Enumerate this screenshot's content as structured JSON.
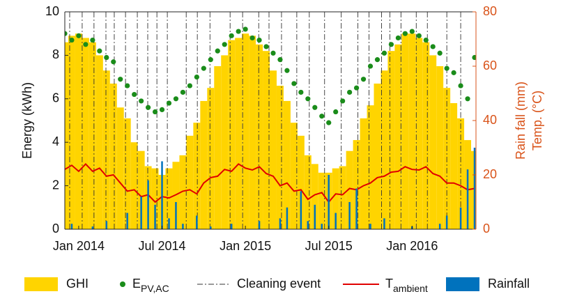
{
  "chart_data": {
    "type": "combo",
    "ylabel": "Energy (kWh)",
    "y2label": [
      "Rain fall (mm)",
      "Temp. (°C)"
    ],
    "y2color": "#d95319",
    "xlim": [
      -1,
      28.6
    ],
    "xticks": [
      {
        "value": 0,
        "label": "Jan 2014"
      },
      {
        "value": 6,
        "label": "Jul 2014"
      },
      {
        "value": 12,
        "label": "Jan 2015"
      },
      {
        "value": 18,
        "label": "Jul 2015"
      },
      {
        "value": 24,
        "label": "Jan 2016"
      }
    ],
    "ylim": [
      0,
      10
    ],
    "yticks": [
      0,
      2,
      4,
      6,
      8,
      10
    ],
    "y2lim": [
      0,
      80
    ],
    "y2ticks": [
      0,
      20,
      40,
      60,
      80
    ],
    "x": [
      -1,
      -0.5,
      0,
      0.5,
      1,
      1.5,
      2,
      2.5,
      3,
      3.5,
      4,
      4.5,
      5,
      5.5,
      6,
      6.5,
      7,
      7.5,
      8,
      8.5,
      9,
      9.5,
      10,
      10.5,
      11,
      11.5,
      12,
      12.5,
      13,
      13.5,
      14,
      14.5,
      15,
      15.5,
      16,
      16.5,
      17,
      17.5,
      18,
      18.5,
      19,
      19.5,
      20,
      20.5,
      21,
      21.5,
      22,
      22.5,
      23,
      23.5,
      24,
      24.5,
      25,
      25.5,
      26,
      26.5,
      27,
      27.5,
      28,
      28.5
    ],
    "series": [
      {
        "name": "GHI",
        "type": "bar",
        "color": "#ffd400",
        "values": [
          8.6,
          8.9,
          9.0,
          8.8,
          8.6,
          8.0,
          7.3,
          6.7,
          5.6,
          5.1,
          4.0,
          3.6,
          2.9,
          2.8,
          2.5,
          2.8,
          3.1,
          3.4,
          4.3,
          4.9,
          5.9,
          6.5,
          7.5,
          8.0,
          8.7,
          8.8,
          9.0,
          8.9,
          8.5,
          8.2,
          7.3,
          6.6,
          5.9,
          4.9,
          4.3,
          3.4,
          3.0,
          2.6,
          2.6,
          2.8,
          2.9,
          3.6,
          4.1,
          5.1,
          5.7,
          6.7,
          7.3,
          8.2,
          8.5,
          9.0,
          9.0,
          8.8,
          8.6,
          8.0,
          7.5,
          6.5,
          5.8,
          5.1,
          4.1,
          3.6
        ]
      },
      {
        "name": "E",
        "subscript": "PV,AC",
        "type": "scatter",
        "color": "#1a8c1a",
        "values": [
          9.0,
          8.7,
          8.9,
          8.5,
          8.7,
          8.2,
          7.9,
          7.7,
          6.9,
          6.6,
          6.2,
          5.9,
          5.6,
          5.4,
          5.5,
          5.8,
          6.0,
          6.3,
          6.6,
          7.0,
          7.4,
          7.8,
          8.2,
          8.5,
          8.9,
          9.1,
          9.2,
          8.8,
          8.7,
          8.4,
          8.1,
          7.8,
          7.3,
          6.7,
          6.3,
          6.0,
          5.6,
          5.2,
          4.9,
          5.4,
          5.9,
          6.3,
          6.5,
          6.9,
          7.5,
          7.8,
          8.1,
          8.5,
          8.8,
          9.0,
          9.1,
          8.9,
          8.7,
          8.4,
          8.1,
          7.4,
          7.2,
          6.6,
          6.0,
          7.9
        ]
      },
      {
        "name": "Cleaning event",
        "type": "vline",
        "color": "#333333",
        "x": [
          -0.65,
          0.25,
          1.1,
          1.96,
          2.56,
          3.37,
          4.22,
          4.97,
          5.63,
          6.38,
          7.74,
          8.54,
          9.45,
          10.9,
          11.8,
          12.96,
          13.7,
          14.6,
          15.7,
          16.6,
          17.7,
          18.9,
          20.1,
          20.9,
          21.8,
          22.4,
          23.2,
          24.3,
          25.1,
          26.5,
          27.5
        ]
      },
      {
        "name": "T",
        "subscript": "ambient",
        "type": "line",
        "color": "#e00000",
        "axis": "y2",
        "values": [
          22,
          23.5,
          21.3,
          24,
          21.3,
          22.5,
          19.5,
          20,
          17,
          14,
          14.5,
          12,
          12.7,
          10,
          12,
          11.5,
          12.7,
          14,
          14.5,
          13,
          17,
          19,
          19.5,
          22,
          21.3,
          24,
          22.5,
          21.8,
          23,
          20.5,
          19.5,
          16,
          17,
          14,
          14.5,
          11,
          12.7,
          13.5,
          10,
          13,
          12.7,
          15,
          14.5,
          16,
          17,
          19,
          19.5,
          21,
          21.3,
          23,
          22,
          21.8,
          23,
          20.5,
          19.5,
          17,
          17,
          16,
          14.5,
          15
        ]
      },
      {
        "name": "Rainfall",
        "type": "bar",
        "color": "#0072bd",
        "axis": "y2",
        "values": [
          0,
          2,
          0,
          0,
          1,
          0,
          3,
          0,
          0,
          6,
          0,
          12,
          18,
          9,
          25,
          4,
          10,
          2,
          0,
          5,
          0,
          1,
          0,
          0,
          2,
          0,
          0,
          0,
          3,
          0,
          0,
          4,
          8,
          0,
          14,
          3,
          9,
          2,
          20,
          6,
          0,
          10,
          15,
          0,
          2,
          0,
          4,
          0,
          0,
          0,
          1,
          0,
          0,
          0,
          2,
          5,
          0,
          8,
          22,
          30
        ]
      }
    ]
  }
}
